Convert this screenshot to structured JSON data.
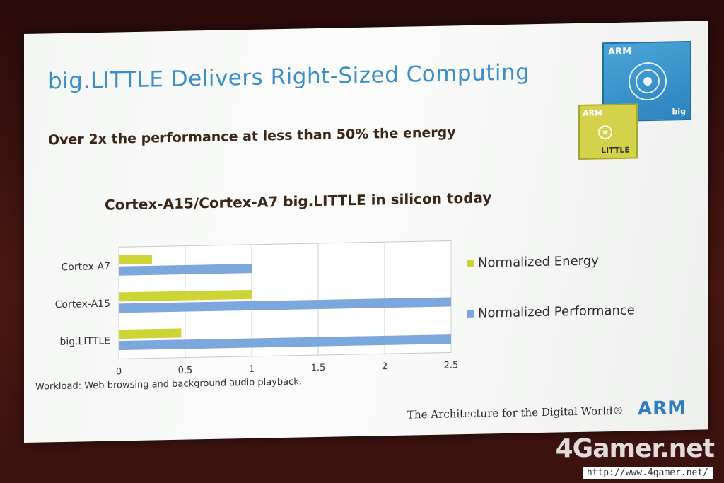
{
  "slide": {
    "title": "big.LITTLE Delivers Right-Sized Computing",
    "subtitle": "Over 2x the performance at less than 50% the energy",
    "chart_heading": "Cortex-A15/Cortex-A7 big.LITTLE in silicon today",
    "footnote": "Workload: Web browsing and background audio playback.",
    "tagline": "The Architecture for the Digital World®",
    "brand": "ARM",
    "logo_big_brand": "ARM",
    "logo_big_label": "big",
    "logo_little_brand": "ARM",
    "logo_little_label": "LITTLE"
  },
  "watermark": {
    "name": "4Gamer.net",
    "url": "http://www.4gamer.net/"
  },
  "chart_data": {
    "type": "bar",
    "orientation": "horizontal",
    "categories": [
      "Cortex-A7",
      "Cortex-A15",
      "big.LITTLE"
    ],
    "series": [
      {
        "name": "Normalized Energy",
        "color": "#cfd436",
        "values": [
          0.25,
          1.0,
          0.47
        ]
      },
      {
        "name": "Normalized Performance",
        "color": "#7ba7dc",
        "values": [
          1.0,
          2.5,
          2.5
        ]
      }
    ],
    "xlim": [
      0,
      2.5
    ],
    "xticks": [
      "0",
      "0.5",
      "1",
      "1.5",
      "2",
      "2.5"
    ],
    "grid": true,
    "legend": "right"
  }
}
